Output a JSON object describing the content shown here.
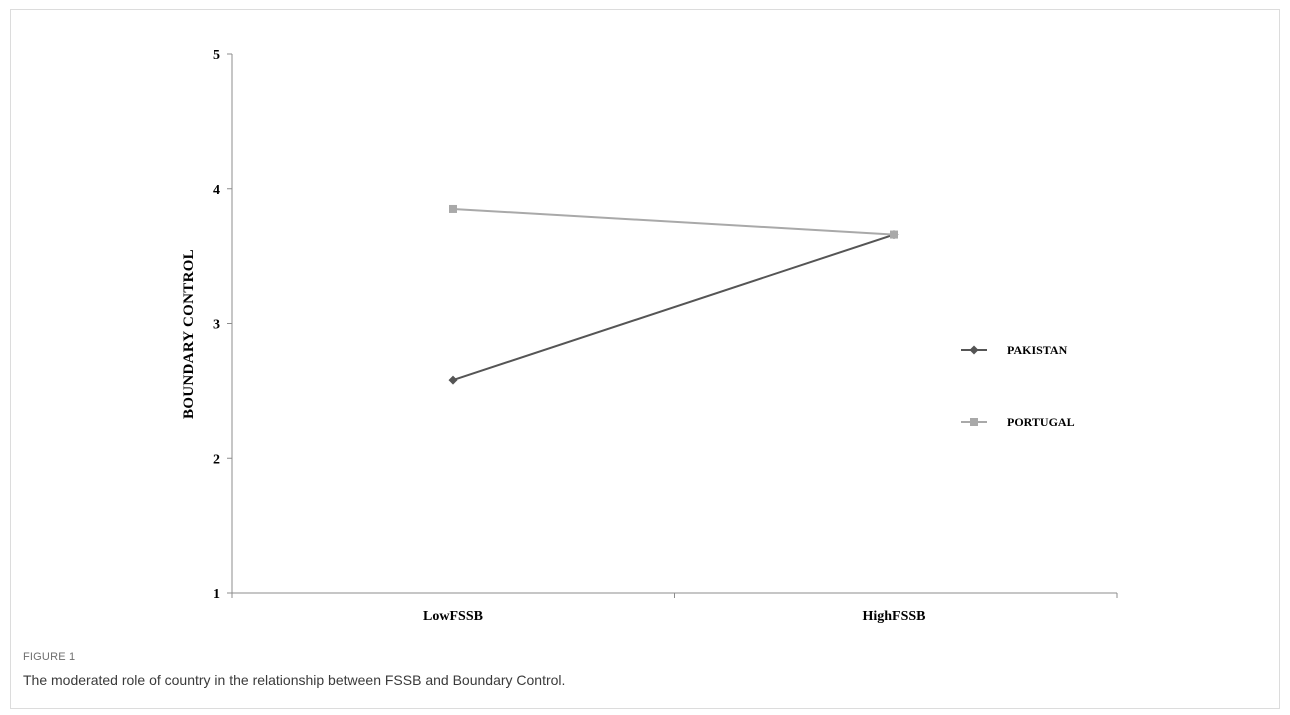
{
  "figure": {
    "label": "FIGURE 1",
    "caption": "The moderated role of country in the relationship between FSSB and Boundary Control."
  },
  "chart_data": {
    "type": "line",
    "categories": [
      "LowFSSB",
      "HighFSSB"
    ],
    "ylabel": "BOUNDARY CONTROL",
    "xlabel": "",
    "ylim": [
      1,
      5
    ],
    "yticks": [
      1,
      2,
      3,
      4,
      5
    ],
    "grid": false,
    "legend_position": "right",
    "series": [
      {
        "name": "PAKISTAN",
        "values": [
          2.58,
          3.66
        ],
        "color": "#555555",
        "marker": "diamond"
      },
      {
        "name": "PORTUGAL",
        "values": [
          3.85,
          3.66
        ],
        "color": "#a9a9a9",
        "marker": "square"
      }
    ]
  }
}
